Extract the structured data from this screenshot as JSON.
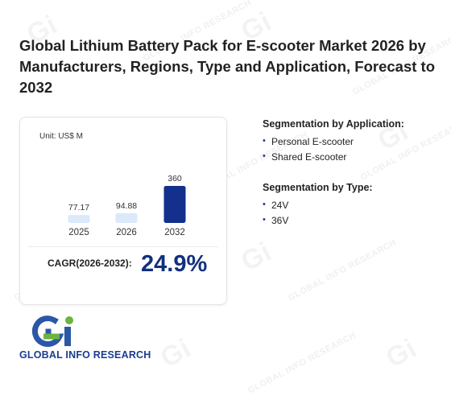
{
  "title": "Global Lithium Battery Pack for E-scooter Market 2026 by Manufacturers, Regions, Type and Application, Forecast to 2032",
  "unit_label": "Unit: US$ M",
  "chart_data": {
    "type": "bar",
    "categories": [
      "2025",
      "2026",
      "2032"
    ],
    "values": [
      77.17,
      94.88,
      360
    ],
    "value_labels": [
      "77.17",
      "94.88",
      "360"
    ],
    "colors": [
      "#dbe9fb",
      "#dbe9fb",
      "#12308c"
    ],
    "ylim": [
      0,
      360
    ]
  },
  "cagr": {
    "label": "CAGR(2026-2032):",
    "value": "24.9%"
  },
  "segmentation_application": {
    "title": "Segmentation by Application:",
    "items": [
      "Personal E-scooter",
      "Shared E-scooter"
    ]
  },
  "segmentation_type": {
    "title": "Segmentation by Type:",
    "items": [
      "24V",
      "36V"
    ]
  },
  "logo": {
    "text": "GLOBAL INFO RESEARCH",
    "mark": "Gi"
  },
  "watermark_text": "GLOBAL INFO RESEARCH"
}
